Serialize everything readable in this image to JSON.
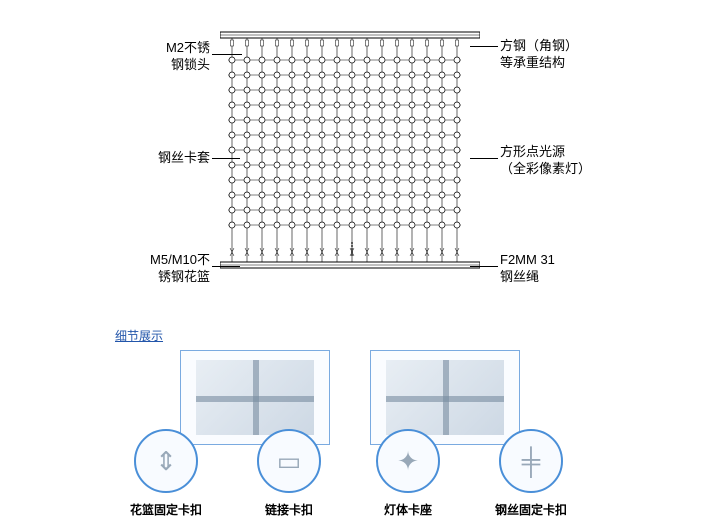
{
  "diagram": {
    "grid": {
      "rows": 12,
      "cols": 16,
      "cell": 15,
      "node_radius": 3
    },
    "callouts": {
      "top_left": {
        "line1": "M2不锈",
        "line2": "钢锁头"
      },
      "mid_left": {
        "line1": "钢丝卡套"
      },
      "bot_left": {
        "line1": "M5/M10不",
        "line2": "锈钢花篮"
      },
      "top_right": {
        "line1": "方钢（角钢）",
        "line2": "等承重结构"
      },
      "mid_right": {
        "line1": "方形点光源",
        "line2": "（全彩像素灯）"
      },
      "bot_right": {
        "line1": "F2MM 31",
        "line2": "钢丝绳"
      }
    },
    "colors": {
      "stroke": "#000000",
      "rail": "#000000"
    }
  },
  "section_title": "细节展示",
  "photos": [
    {
      "alt": "LED节点特写1"
    },
    {
      "alt": "LED节点特写2"
    }
  ],
  "icons": [
    {
      "label": "花篮固定卡扣",
      "glyph": "⇕"
    },
    {
      "label": "链接卡扣",
      "glyph": "▭"
    },
    {
      "label": "灯体卡座",
      "glyph": "✦"
    },
    {
      "label": "钢丝固定卡扣",
      "glyph": "╪"
    }
  ],
  "styling": {
    "page_bg": "#ffffff",
    "photo_border": "#7aaae0",
    "icon_border": "#4a8fd8",
    "link_color": "#2255aa",
    "label_fontsize": 13,
    "icon_label_fontsize": 12
  }
}
